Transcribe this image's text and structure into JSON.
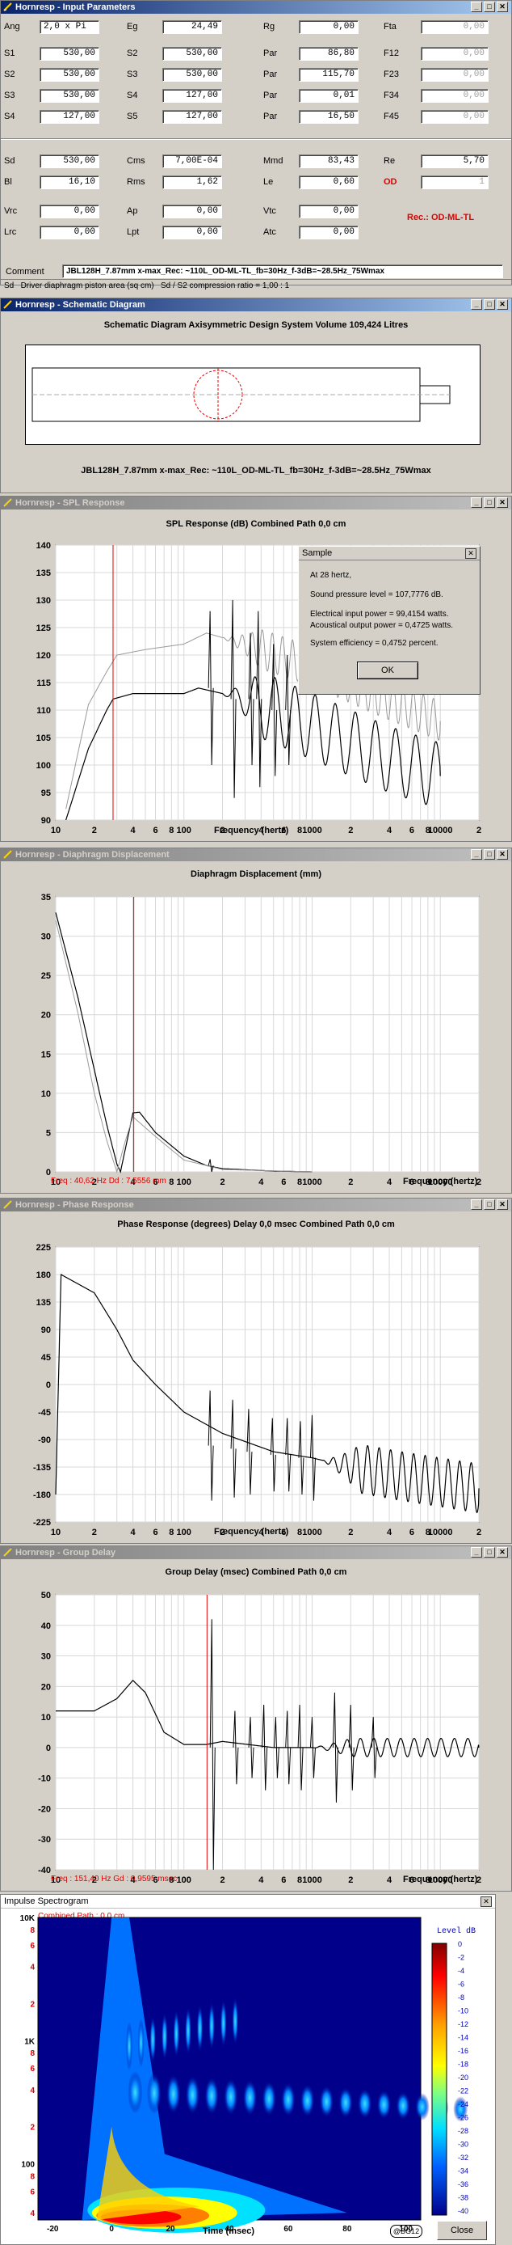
{
  "input": {
    "title": "Hornresp - Input Parameters",
    "rows": [
      [
        [
          "Ang",
          "2,0 x Pi"
        ],
        [
          "Eg",
          "24,49"
        ],
        [
          "Rg",
          "0,00"
        ],
        [
          "Fta",
          "0,00"
        ]
      ],
      [
        [
          "S1",
          "530,00"
        ],
        [
          "S2",
          "530,00"
        ],
        [
          "Par",
          "86,80"
        ],
        [
          "F12",
          "0,00"
        ]
      ],
      [
        [
          "S2",
          "530,00"
        ],
        [
          "S3",
          "530,00"
        ],
        [
          "Par",
          "115,70"
        ],
        [
          "F23",
          "0,00"
        ]
      ],
      [
        [
          "S3",
          "530,00"
        ],
        [
          "S4",
          "127,00"
        ],
        [
          "Par",
          "0,01"
        ],
        [
          "F34",
          "0,00"
        ]
      ],
      [
        [
          "S4",
          "127,00"
        ],
        [
          "S5",
          "127,00"
        ],
        [
          "Par",
          "16,50"
        ],
        [
          "F45",
          "0,00"
        ]
      ],
      [
        [
          "Sd",
          "530,00"
        ],
        [
          "Cms",
          "7,00E-04"
        ],
        [
          "Mmd",
          "83,43"
        ],
        [
          "Re",
          "5,70"
        ]
      ],
      [
        [
          "Bl",
          "16,10"
        ],
        [
          "Rms",
          "1,62"
        ],
        [
          "Le",
          "0,60"
        ],
        [
          "OD",
          "1"
        ]
      ],
      [
        [
          "Vrc",
          "0,00"
        ],
        [
          "Ap",
          "0,00"
        ],
        [
          "Vtc",
          "0,00"
        ]
      ],
      [
        [
          "Lrc",
          "0,00"
        ],
        [
          "Lpt",
          "0,00"
        ],
        [
          "Atc",
          "0,00"
        ]
      ]
    ],
    "rec": "Rec.: OD-ML-TL",
    "comment_label": "Comment",
    "comment": "JBL128H_7.87mm x-max_Rec: ~110L_OD-ML-TL_fb=30Hz_f-3dB=~28.5Hz_75Wmax",
    "status": [
      "Sd",
      "Driver diaphragm piston area  (sq cm)",
      "Sd / S2 compression ratio = 1,00 : 1"
    ]
  },
  "schematic": {
    "title": "Hornresp - Schematic Diagram",
    "heading": "Schematic Diagram    Axisymmetric Design    System Volume 109,424 Litres",
    "caption": "JBL128H_7.87mm x-max_Rec: ~110L_OD-ML-TL_fb=30Hz_f-3dB=~28.5Hz_75Wmax"
  },
  "freq_ticks": [
    "10",
    "2",
    "4",
    "6",
    "8",
    "100",
    "2",
    "4",
    "6",
    "8",
    "1000",
    "2",
    "4",
    "6",
    "8",
    "10000",
    "2"
  ],
  "xlabel": "Frequency (hertz)",
  "spl": {
    "title": "Hornresp - SPL Response",
    "heading": "SPL Response (dB)    Combined    Path 0,0 cm"
  },
  "sample": {
    "title": "Sample",
    "lines": [
      "At 28 hertz,",
      "Sound pressure level = 107,7776 dB.",
      "Electrical input power = 99,4154 watts.",
      "Acoustical output power = 0,4725 watts.",
      "System efficiency = 0,4752 percent."
    ],
    "ok": "OK"
  },
  "disp": {
    "title": "Hornresp - Diaphragm Displacement",
    "heading": "Diaphragm Displacement (mm)",
    "readout": "Freq : 40,62 Hz     Dd : 7,5556 mm"
  },
  "phase": {
    "title": "Hornresp - Phase Response",
    "heading": "Phase Response (degrees)    Delay 0,0 msec    Combined    Path 0,0 cm"
  },
  "gd": {
    "title": "Hornresp - Group Delay",
    "heading": "Group Delay (msec)    Combined    Path 0,0 cm",
    "readout": "Freq : 151,40 Hz     Gd : 0,9595 msec"
  },
  "spectro": {
    "title": "Impulse Spectrogram",
    "sub": "Combined    Path : 0,0 cm",
    "level": "Level  dB",
    "xlabel": "Time (msec)",
    "xticks": [
      "-20",
      "0",
      "20",
      "40",
      "60",
      "80",
      "100",
      "120"
    ],
    "yticks": [
      "10K",
      "8",
      "6",
      "4",
      "2",
      "1K",
      "8",
      "6",
      "4",
      "2",
      "100",
      "8",
      "6",
      "4"
    ],
    "cticks": [
      "0",
      "-2",
      "-4",
      "-6",
      "-8",
      "-10",
      "-12",
      "-14",
      "-16",
      "-18",
      "-20",
      "-22",
      "-24",
      "-26",
      "-28",
      "-30",
      "-32",
      "-34",
      "-36",
      "-38",
      "-40"
    ],
    "copy": "@BG12",
    "close": "Close"
  },
  "chart_data": [
    {
      "type": "line",
      "title": "SPL Response (dB)",
      "xlabel": "Frequency (hertz)",
      "ylabel": "dB",
      "x_scale": "log",
      "xlim": [
        10,
        20000
      ],
      "ylim": [
        90,
        140
      ],
      "yticks": [
        140,
        135,
        130,
        125,
        120,
        115,
        110,
        105,
        100,
        95,
        90
      ],
      "marker_freq": 28,
      "series": [
        {
          "values": [
            [
              12,
              90
            ],
            [
              18,
              103
            ],
            [
              25,
              110
            ],
            [
              28,
              112
            ],
            [
              40,
              113
            ],
            [
              60,
              113
            ],
            [
              100,
              113
            ],
            [
              130,
              114
            ],
            [
              200,
              113
            ],
            [
              300,
              112
            ],
            [
              500,
              110
            ],
            [
              1000,
              107
            ],
            [
              2000,
              104
            ],
            [
              4000,
              101
            ],
            [
              10000,
              98
            ]
          ]
        },
        {
          "values": [
            [
              12,
              92
            ],
            [
              18,
              111
            ],
            [
              25,
              117
            ],
            [
              30,
              120
            ],
            [
              50,
              121
            ],
            [
              100,
              122
            ],
            [
              150,
              124
            ],
            [
              300,
              122
            ],
            [
              1000,
              118
            ],
            [
              3000,
              113
            ],
            [
              10000,
              108
            ]
          ]
        }
      ]
    },
    {
      "type": "line",
      "title": "Diaphragm Displacement (mm)",
      "x_scale": "log",
      "xlim": [
        10,
        20000
      ],
      "ylim": [
        0,
        35
      ],
      "yticks": [
        35,
        30,
        25,
        20,
        15,
        10,
        5,
        0
      ],
      "marker_freq": 40.62,
      "series": [
        {
          "values": [
            [
              10,
              33
            ],
            [
              15,
              22
            ],
            [
              20,
              13
            ],
            [
              25,
              6
            ],
            [
              30,
              1
            ],
            [
              32,
              0
            ],
            [
              35,
              3
            ],
            [
              40,
              7.5
            ],
            [
              45,
              7.6
            ],
            [
              60,
              5
            ],
            [
              100,
              2
            ],
            [
              150,
              0.8
            ],
            [
              200,
              0.4
            ],
            [
              500,
              0.1
            ],
            [
              1000,
              0
            ]
          ]
        },
        {
          "values": [
            [
              10,
              32
            ],
            [
              15,
              20
            ],
            [
              20,
              10
            ],
            [
              25,
              4
            ],
            [
              30,
              0
            ],
            [
              35,
              4
            ],
            [
              40,
              7
            ],
            [
              60,
              4.5
            ],
            [
              100,
              1.5
            ],
            [
              200,
              0.3
            ],
            [
              1000,
              0
            ]
          ]
        }
      ]
    },
    {
      "type": "line",
      "title": "Phase Response (degrees)",
      "x_scale": "log",
      "xlim": [
        10,
        20000
      ],
      "ylim": [
        -225,
        225
      ],
      "yticks": [
        225,
        180,
        135,
        90,
        45,
        0,
        -45,
        -90,
        -135,
        -180,
        -225
      ],
      "series": [
        {
          "values": [
            [
              10,
              -180
            ],
            [
              11,
              180
            ],
            [
              20,
              150
            ],
            [
              30,
              90
            ],
            [
              40,
              40
            ],
            [
              60,
              0
            ],
            [
              100,
              -45
            ],
            [
              200,
              -80
            ],
            [
              500,
              -110
            ],
            [
              1000,
              -120
            ],
            [
              2000,
              -135
            ],
            [
              5000,
              -150
            ],
            [
              20000,
              -170
            ]
          ]
        }
      ]
    },
    {
      "type": "line",
      "title": "Group Delay (msec)",
      "x_scale": "log",
      "xlim": [
        10,
        20000
      ],
      "ylim": [
        -40,
        50
      ],
      "yticks": [
        50,
        40,
        30,
        20,
        10,
        0,
        -10,
        -20,
        -30,
        -40
      ],
      "marker_freq": 151.4,
      "series": [
        {
          "values": [
            [
              10,
              12
            ],
            [
              20,
              12
            ],
            [
              30,
              16
            ],
            [
              40,
              22
            ],
            [
              50,
              18
            ],
            [
              70,
              5
            ],
            [
              100,
              1
            ],
            [
              150,
              1
            ],
            [
              200,
              2
            ],
            [
              500,
              0
            ],
            [
              1000,
              0
            ],
            [
              5000,
              0
            ],
            [
              20000,
              0
            ]
          ]
        }
      ]
    }
  ]
}
